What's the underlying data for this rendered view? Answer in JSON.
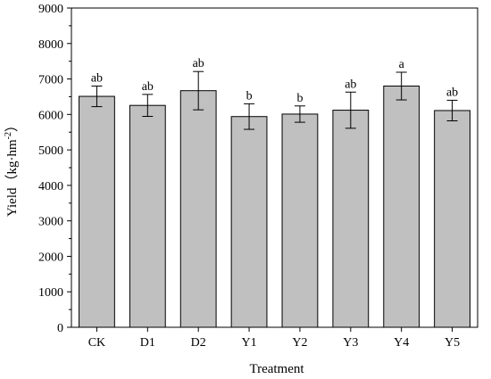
{
  "chart_data": {
    "type": "bar",
    "xlabel": "Treatment",
    "ylabel": "Yield（kg·hm",
    "ylabel_sup": "-2",
    "ylabel_close": "）",
    "ylim": [
      0,
      9000
    ],
    "yticks": [
      0,
      1000,
      2000,
      3000,
      4000,
      5000,
      6000,
      7000,
      8000,
      9000
    ],
    "categories": [
      "CK",
      "D1",
      "D2",
      "Y1",
      "Y2",
      "Y3",
      "Y4",
      "Y5"
    ],
    "values": [
      6510,
      6255,
      6670,
      5940,
      6010,
      6120,
      6800,
      6110
    ],
    "errors": [
      290,
      310,
      540,
      360,
      230,
      510,
      390,
      290
    ],
    "significance": [
      "ab",
      "ab",
      "ab",
      "b",
      "b",
      "ab",
      "a",
      "ab"
    ],
    "bar_color": "#c0c0c0",
    "grid": false
  }
}
